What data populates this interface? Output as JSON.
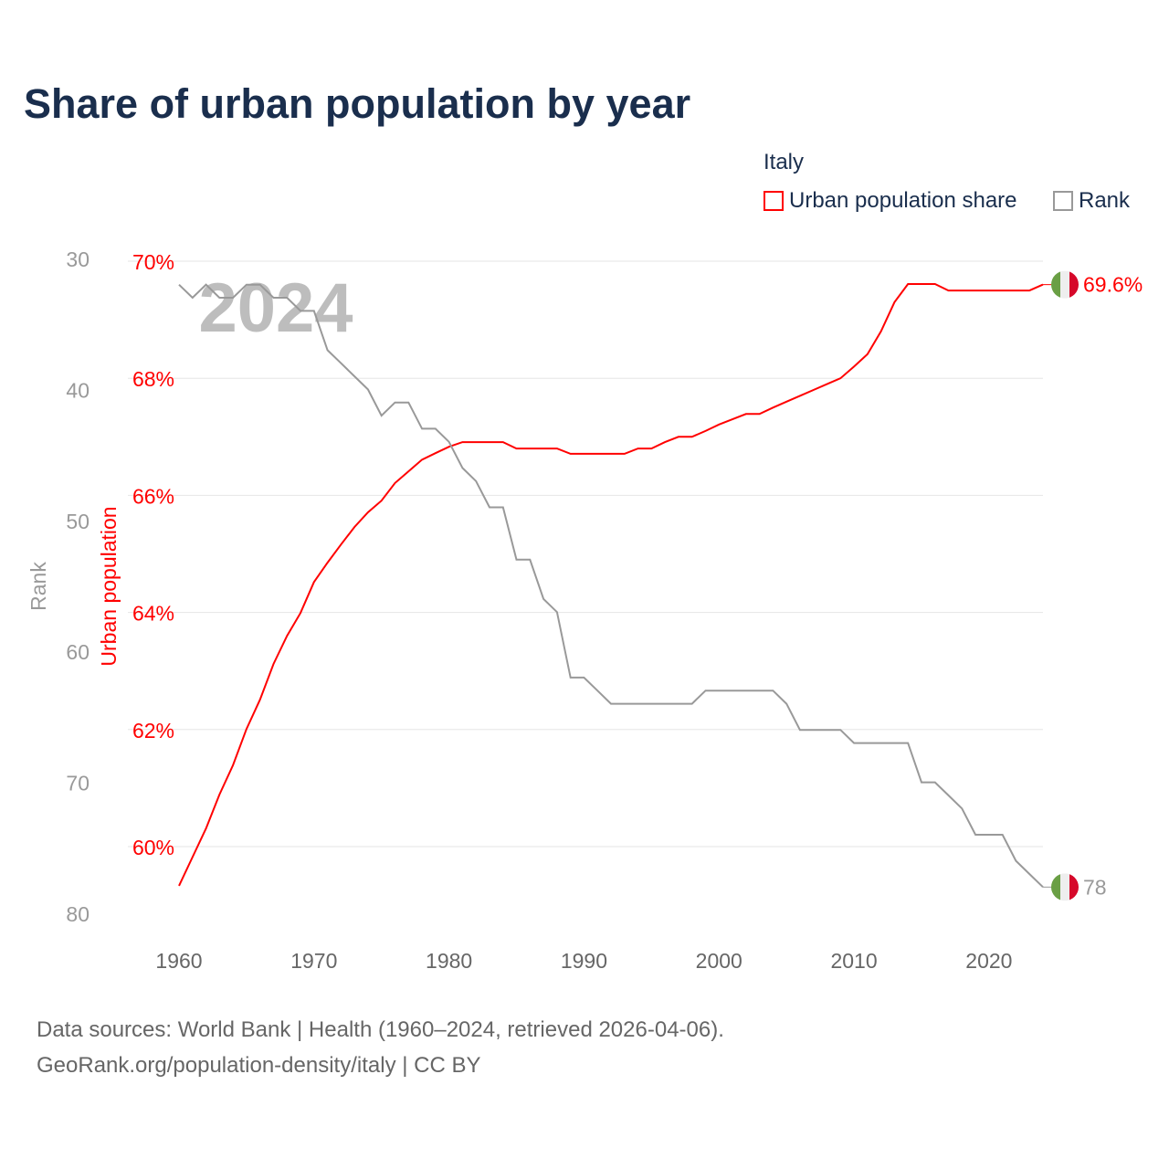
{
  "chart_data": {
    "type": "line",
    "title": "Share of urban population by year",
    "legend_title": "Italy",
    "legend_placement": "top-right",
    "watermark_year": "2024",
    "x": [
      1960,
      1961,
      1962,
      1963,
      1964,
      1965,
      1966,
      1967,
      1968,
      1969,
      1970,
      1971,
      1972,
      1973,
      1974,
      1975,
      1976,
      1977,
      1978,
      1979,
      1980,
      1981,
      1982,
      1983,
      1984,
      1985,
      1986,
      1987,
      1988,
      1989,
      1990,
      1991,
      1992,
      1993,
      1994,
      1995,
      1996,
      1997,
      1998,
      1999,
      2000,
      2001,
      2002,
      2003,
      2004,
      2005,
      2006,
      2007,
      2008,
      2009,
      2010,
      2011,
      2012,
      2013,
      2014,
      2015,
      2016,
      2017,
      2018,
      2019,
      2020,
      2021,
      2022,
      2023,
      2024
    ],
    "xlim": [
      1960,
      2024
    ],
    "xticks": [
      "1960",
      "1970",
      "1980",
      "1990",
      "2000",
      "2010",
      "2020"
    ],
    "series": [
      {
        "name": "Urban population share",
        "axis": "left",
        "color": "#ff0000",
        "end_label": "69.6%",
        "values": [
          59.33,
          59.82,
          60.31,
          60.89,
          61.39,
          62.01,
          62.51,
          63.12,
          63.6,
          63.99,
          64.52,
          64.85,
          65.16,
          65.46,
          65.71,
          65.91,
          66.21,
          66.41,
          66.61,
          66.72,
          66.83,
          66.91,
          66.91,
          66.91,
          66.91,
          66.8,
          66.8,
          66.8,
          66.8,
          66.71,
          66.71,
          66.71,
          66.71,
          66.71,
          66.8,
          66.8,
          66.91,
          67.0,
          67.0,
          67.1,
          67.21,
          67.3,
          67.39,
          67.39,
          67.5,
          67.6,
          67.7,
          67.8,
          67.9,
          68.0,
          68.2,
          68.41,
          68.8,
          69.3,
          69.61,
          69.61,
          69.61,
          69.5,
          69.5,
          69.5,
          69.5,
          69.5,
          69.5,
          69.5,
          69.6
        ]
      },
      {
        "name": "Rank",
        "axis": "right",
        "color": "#999999",
        "end_label": "78",
        "values": [
          32,
          33,
          32,
          33,
          33,
          32,
          32,
          33,
          33,
          34,
          34,
          37,
          38,
          39,
          40,
          42,
          41,
          41,
          43,
          43,
          44,
          46,
          47,
          49,
          49,
          53,
          53,
          56,
          57,
          62,
          62,
          63,
          64,
          64,
          64,
          64,
          64,
          64,
          64,
          63,
          63,
          63,
          63,
          63,
          63,
          64,
          66,
          66,
          66,
          66,
          67,
          67,
          67,
          67,
          67,
          70,
          70,
          71,
          72,
          74,
          74,
          74,
          76,
          77,
          78
        ]
      }
    ],
    "left_axis": {
      "label": "Urban population",
      "ylim": [
        59,
        70
      ],
      "ticks": [
        "60%",
        "62%",
        "64%",
        "66%",
        "68%",
        "70%"
      ],
      "color": "#ff0000"
    },
    "rank_axis": {
      "label": "Rank",
      "ylim": [
        30,
        80
      ],
      "ticks": [
        "30",
        "40",
        "50",
        "60",
        "70",
        "80"
      ],
      "color": "#999999",
      "inverted": true
    },
    "grid": true,
    "source_line1": "Data sources: World Bank | Health (1960–2024, retrieved 2026-04-06).",
    "source_line2": "GeoRank.org/population-density/italy | CC BY"
  }
}
